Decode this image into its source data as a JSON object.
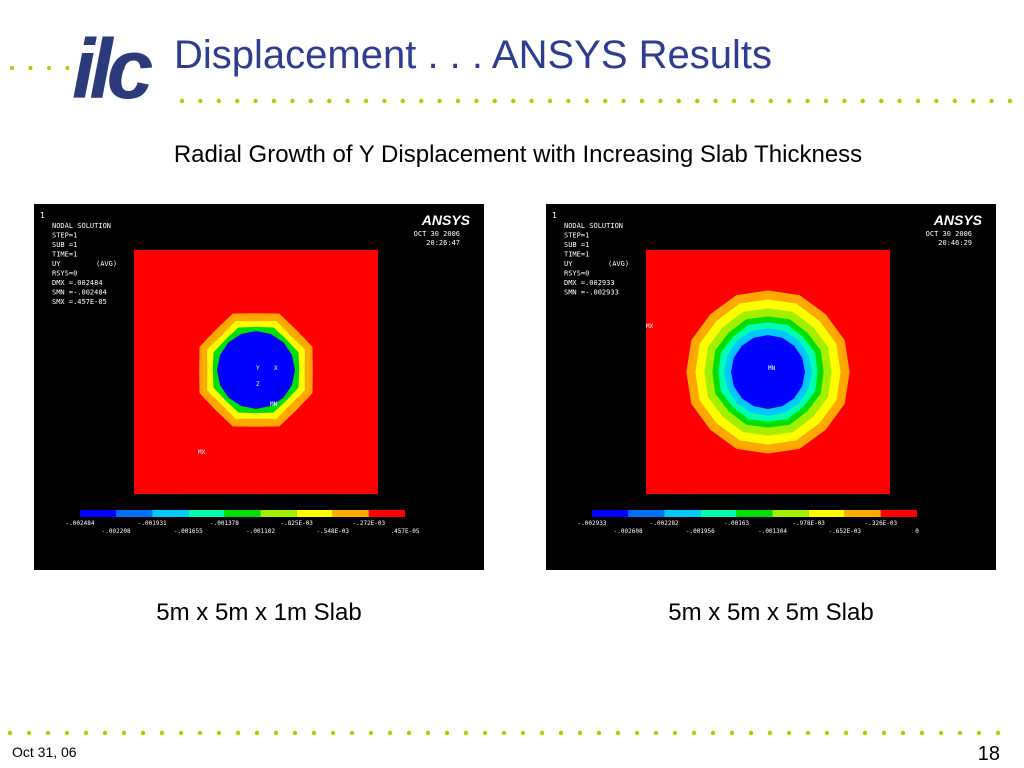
{
  "header": {
    "logo": "ilc",
    "title": "Displacement . . . ANSYS Results"
  },
  "subtitle": "Radial Growth of Y Displacement with Increasing Slab Thickness",
  "panels": [
    {
      "index": "1",
      "info": [
        "NODAL SOLUTION",
        "STEP=1",
        "SUB =1",
        "TIME=1",
        "UY",
        "RSYS=0",
        "DMX =.002484",
        "SMN =-.002484",
        "SMX =.457E-05"
      ],
      "avg": "(AVG)",
      "brand": "ANSYS",
      "date": "OCT 30 2006",
      "time": "20:26:47",
      "markers": [
        "MN",
        "MX",
        "Y",
        "X",
        "Z"
      ],
      "legend_top": [
        "-.002484",
        "-.001931",
        "-.001378",
        "-.825E-03",
        "-.272E-03"
      ],
      "legend_bottom": [
        "-.002208",
        "-.001655",
        "-.001102",
        "-.548E-03",
        ".457E-05"
      ],
      "caption": "5m x 5m x 1m Slab"
    },
    {
      "index": "1",
      "info": [
        "NODAL SOLUTION",
        "STEP=1",
        "SUB =1",
        "TIME=1",
        "UY",
        "RSYS=0",
        "DMX =.002933",
        "SMN =-.002933"
      ],
      "avg": "(AVG)",
      "brand": "ANSYS",
      "date": "OCT 30 2006",
      "time": "20:46:29",
      "markers": [
        "MN",
        "MX"
      ],
      "legend_top": [
        "-.002933",
        "-.002282",
        "-.00163",
        "-.978E-03",
        "-.326E-03"
      ],
      "legend_bottom": [
        "-.002608",
        "-.001956",
        "-.001304",
        "-.652E-03",
        "0"
      ],
      "caption": "5m x 5m x 5m Slab"
    }
  ],
  "footer": {
    "date": "Oct 31, 06",
    "page": "18"
  }
}
